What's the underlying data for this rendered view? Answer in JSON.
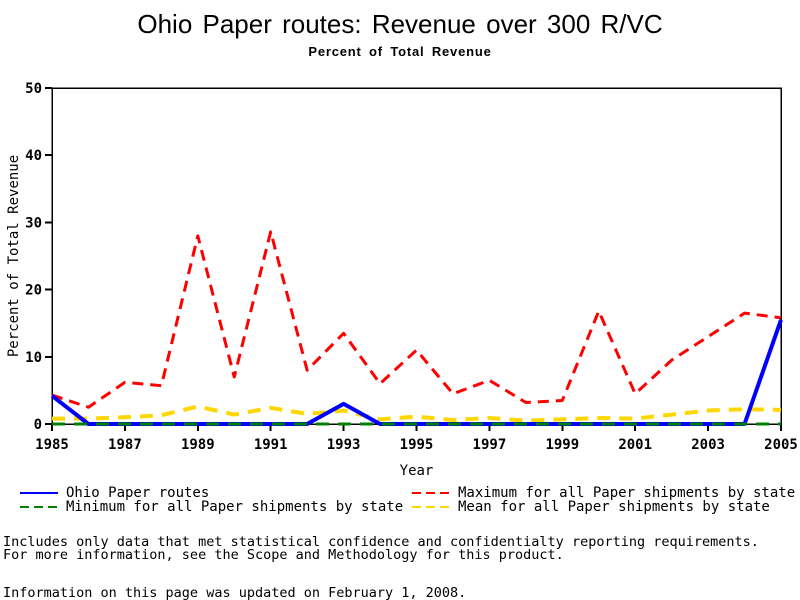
{
  "header": {
    "title": "Ohio Paper routes: Revenue over 300 R/VC",
    "subtitle": "Percent of Total Revenue"
  },
  "chart_data": {
    "type": "line",
    "title": "Ohio Paper routes: Revenue over 300 R/VC",
    "subtitle": "Percent of Total Revenue",
    "xlabel": "Year",
    "ylabel": "Percent of Total Revenue",
    "ylim": [
      0,
      50
    ],
    "y_ticks": [
      0,
      10,
      20,
      30,
      40,
      50
    ],
    "x_ticks": [
      1985,
      1987,
      1989,
      1991,
      1993,
      1995,
      1997,
      1999,
      2001,
      2003,
      2005
    ],
    "grid": false,
    "legend_position": "bottom",
    "x": [
      1985,
      1986,
      1987,
      1988,
      1989,
      1990,
      1991,
      1992,
      1993,
      1994,
      1995,
      1996,
      1997,
      1998,
      1999,
      2000,
      2001,
      2002,
      2003,
      2004,
      2005
    ],
    "series": [
      {
        "id": "ohio",
        "name": "Ohio Paper routes",
        "color": "#0000ff",
        "style": "solid",
        "dash": "",
        "width": 4,
        "values": [
          4.2,
          0,
          0,
          0,
          0,
          0,
          0,
          0,
          3.0,
          0,
          0,
          0,
          0,
          0,
          0,
          0,
          0,
          0,
          0,
          0,
          15.5
        ]
      },
      {
        "id": "maximum",
        "name": "Maximum for all Paper shipments by state",
        "color": "#ff0000",
        "style": "dashed",
        "dash": "11 7",
        "width": 3,
        "values": [
          4.3,
          2.5,
          6.2,
          5.7,
          28.0,
          7.0,
          28.6,
          8.0,
          13.5,
          6.0,
          11.0,
          4.5,
          6.5,
          3.2,
          3.5,
          16.8,
          4.5,
          9.5,
          13.0,
          16.5,
          15.8
        ]
      },
      {
        "id": "minimum",
        "name": "Minimum for all Paper shipments by state",
        "color": "#008000",
        "style": "dashed",
        "dash": "13 9",
        "width": 3,
        "values": [
          0,
          0,
          0,
          0,
          0,
          0,
          0,
          0,
          0,
          0,
          0,
          0,
          0,
          0,
          0,
          0,
          0,
          0,
          0,
          0,
          0
        ]
      },
      {
        "id": "mean",
        "name": "Mean for all Paper shipments by state",
        "color": "#ffd700",
        "style": "dashed",
        "dash": "13 9",
        "width": 4,
        "values": [
          0.8,
          0.8,
          1.0,
          1.3,
          2.6,
          1.4,
          2.4,
          1.5,
          2.0,
          0.7,
          1.1,
          0.6,
          0.9,
          0.5,
          0.7,
          0.9,
          0.8,
          1.4,
          2.0,
          2.2,
          2.1
        ]
      }
    ]
  },
  "colors": {
    "axis": "#000000",
    "background": "#ffffff"
  },
  "footnotes": {
    "line1": "Includes only data that met statistical confidence and confidentialty reporting requirements.",
    "line2": "For more information, see the Scope and Methodology for this product.",
    "updated": "Information on this page was updated on February 1, 2008."
  }
}
